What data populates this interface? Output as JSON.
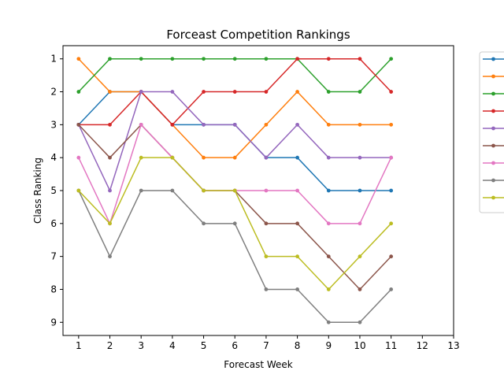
{
  "chart_data": {
    "type": "line",
    "title": "Forceast Competition Rankings",
    "xlabel": "Forecast Week",
    "ylabel": "Class Ranking",
    "x": [
      1,
      2,
      3,
      4,
      5,
      6,
      7,
      8,
      9,
      10,
      11
    ],
    "xlim": [
      0.5,
      13
    ],
    "ylim": [
      9.4,
      0.6
    ],
    "y_inverted": true,
    "xticks": [
      1,
      2,
      3,
      4,
      5,
      6,
      7,
      8,
      9,
      10,
      11,
      12,
      13
    ],
    "yticks": [
      1,
      2,
      3,
      4,
      5,
      6,
      7,
      8,
      9
    ],
    "grid": false,
    "legend_position": "outside-right",
    "series": [
      {
        "color": "#1f77b4",
        "values": [
          3,
          2,
          2,
          3,
          3,
          3,
          4,
          4,
          5,
          5,
          5
        ]
      },
      {
        "color": "#ff7f0e",
        "values": [
          1,
          2,
          2,
          3,
          4,
          4,
          3,
          2,
          3,
          3,
          3
        ]
      },
      {
        "color": "#2ca02c",
        "values": [
          2,
          1,
          1,
          1,
          1,
          1,
          1,
          1,
          2,
          2,
          1
        ]
      },
      {
        "color": "#d62728",
        "values": [
          3,
          3,
          2,
          3,
          2,
          2,
          2,
          1,
          1,
          1,
          2
        ]
      },
      {
        "color": "#9467bd",
        "values": [
          3,
          5,
          2,
          2,
          3,
          3,
          4,
          3,
          4,
          4,
          4
        ]
      },
      {
        "color": "#8c564b",
        "values": [
          3,
          4,
          3,
          4,
          5,
          5,
          6,
          6,
          7,
          8,
          7
        ]
      },
      {
        "color": "#e377c2",
        "values": [
          4,
          6,
          3,
          4,
          5,
          5,
          5,
          5,
          6,
          6,
          4
        ]
      },
      {
        "color": "#7f7f7f",
        "values": [
          5,
          7,
          5,
          5,
          6,
          6,
          8,
          8,
          9,
          9,
          8
        ]
      },
      {
        "color": "#bcbd22",
        "values": [
          5,
          6,
          4,
          4,
          5,
          5,
          7,
          7,
          8,
          7,
          6
        ]
      }
    ]
  }
}
